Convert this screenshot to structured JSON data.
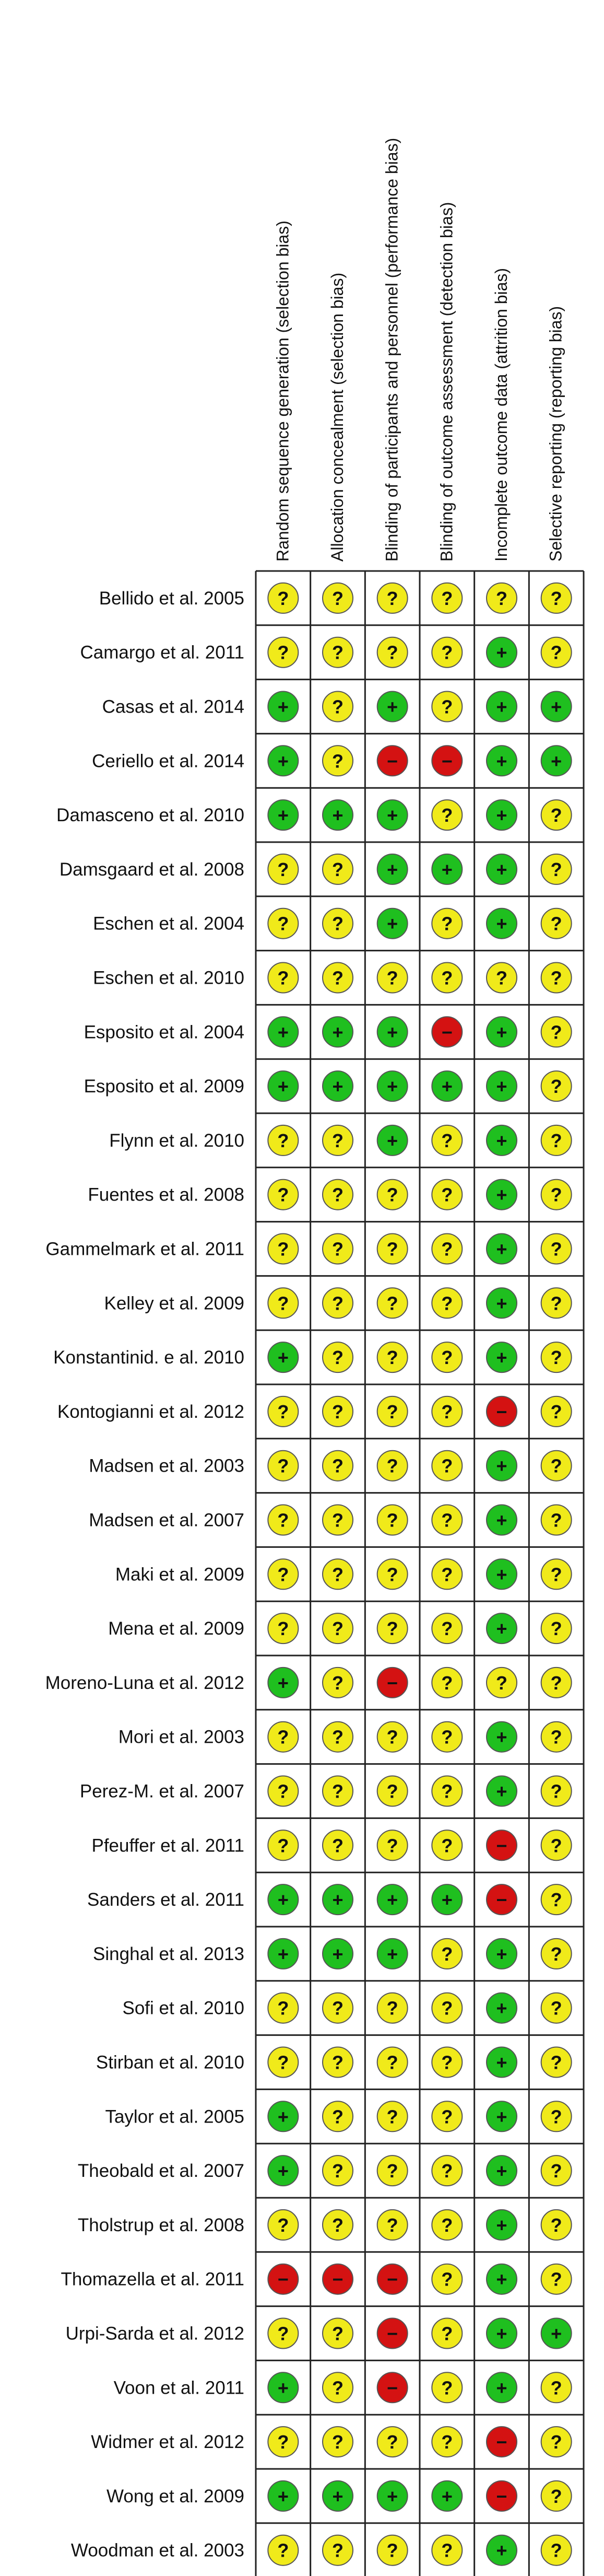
{
  "chart_data": {
    "type": "table",
    "domains": [
      "Random sequence generation (selection bias)",
      "Allocation concealment (selection bias)",
      "Blinding of participants and personnel (performance bias)",
      "Blinding of outcome assessment (detection bias)",
      "Incomplete outcome data (attrition bias)",
      "Selective reporting (reporting bias)"
    ],
    "judgement_symbols": {
      "low": "+",
      "unclear": "?",
      "high": "−"
    },
    "judgement_colors": {
      "low": "#1fbf1f",
      "unclear": "#f0ea1a",
      "high": "#d41212"
    },
    "studies": [
      {
        "name": "Bellido et al. 2005",
        "ratings": [
          "unclear",
          "unclear",
          "unclear",
          "unclear",
          "unclear",
          "unclear"
        ]
      },
      {
        "name": "Camargo et al. 2011",
        "ratings": [
          "unclear",
          "unclear",
          "unclear",
          "unclear",
          "low",
          "unclear"
        ]
      },
      {
        "name": "Casas et al. 2014",
        "ratings": [
          "low",
          "unclear",
          "low",
          "unclear",
          "low",
          "low"
        ]
      },
      {
        "name": "Ceriello et al. 2014",
        "ratings": [
          "low",
          "unclear",
          "high",
          "high",
          "low",
          "low"
        ]
      },
      {
        "name": "Damasceno et al. 2010",
        "ratings": [
          "low",
          "low",
          "low",
          "unclear",
          "low",
          "unclear"
        ]
      },
      {
        "name": "Damsgaard et al. 2008",
        "ratings": [
          "unclear",
          "unclear",
          "low",
          "low",
          "low",
          "unclear"
        ]
      },
      {
        "name": "Eschen et al. 2004",
        "ratings": [
          "unclear",
          "unclear",
          "low",
          "unclear",
          "low",
          "unclear"
        ]
      },
      {
        "name": "Eschen et al. 2010",
        "ratings": [
          "unclear",
          "unclear",
          "unclear",
          "unclear",
          "unclear",
          "unclear"
        ]
      },
      {
        "name": "Esposito et al. 2004",
        "ratings": [
          "low",
          "low",
          "low",
          "high",
          "low",
          "unclear"
        ]
      },
      {
        "name": "Esposito et al. 2009",
        "ratings": [
          "low",
          "low",
          "low",
          "low",
          "low",
          "unclear"
        ]
      },
      {
        "name": "Flynn et al. 2010",
        "ratings": [
          "unclear",
          "unclear",
          "low",
          "unclear",
          "low",
          "unclear"
        ]
      },
      {
        "name": "Fuentes et al. 2008",
        "ratings": [
          "unclear",
          "unclear",
          "unclear",
          "unclear",
          "low",
          "unclear"
        ]
      },
      {
        "name": "Gammelmark et al. 2011",
        "ratings": [
          "unclear",
          "unclear",
          "unclear",
          "unclear",
          "low",
          "unclear"
        ]
      },
      {
        "name": "Kelley et al. 2009",
        "ratings": [
          "unclear",
          "unclear",
          "unclear",
          "unclear",
          "low",
          "unclear"
        ]
      },
      {
        "name": "Konstantinid. e al. 2010",
        "ratings": [
          "low",
          "unclear",
          "unclear",
          "unclear",
          "low",
          "unclear"
        ]
      },
      {
        "name": "Kontogianni et al. 2012",
        "ratings": [
          "unclear",
          "unclear",
          "unclear",
          "unclear",
          "high",
          "unclear"
        ]
      },
      {
        "name": "Madsen et al. 2003",
        "ratings": [
          "unclear",
          "unclear",
          "unclear",
          "unclear",
          "low",
          "unclear"
        ]
      },
      {
        "name": "Madsen et al. 2007",
        "ratings": [
          "unclear",
          "unclear",
          "unclear",
          "unclear",
          "low",
          "unclear"
        ]
      },
      {
        "name": "Maki et al. 2009",
        "ratings": [
          "unclear",
          "unclear",
          "unclear",
          "unclear",
          "low",
          "unclear"
        ]
      },
      {
        "name": "Mena et al. 2009",
        "ratings": [
          "unclear",
          "unclear",
          "unclear",
          "unclear",
          "low",
          "unclear"
        ]
      },
      {
        "name": "Moreno-Luna et al. 2012",
        "ratings": [
          "low",
          "unclear",
          "high",
          "unclear",
          "unclear",
          "unclear"
        ]
      },
      {
        "name": "Mori et al. 2003",
        "ratings": [
          "unclear",
          "unclear",
          "unclear",
          "unclear",
          "low",
          "unclear"
        ]
      },
      {
        "name": "Perez-M. et al. 2007",
        "ratings": [
          "unclear",
          "unclear",
          "unclear",
          "unclear",
          "low",
          "unclear"
        ]
      },
      {
        "name": "Pfeuffer et al. 2011",
        "ratings": [
          "unclear",
          "unclear",
          "unclear",
          "unclear",
          "high",
          "unclear"
        ]
      },
      {
        "name": "Sanders et al. 2011",
        "ratings": [
          "low",
          "low",
          "low",
          "low",
          "high",
          "unclear"
        ]
      },
      {
        "name": "Singhal et al. 2013",
        "ratings": [
          "low",
          "low",
          "low",
          "unclear",
          "low",
          "unclear"
        ]
      },
      {
        "name": "Sofi et al. 2010",
        "ratings": [
          "unclear",
          "unclear",
          "unclear",
          "unclear",
          "low",
          "unclear"
        ]
      },
      {
        "name": "Stirban et al. 2010",
        "ratings": [
          "unclear",
          "unclear",
          "unclear",
          "unclear",
          "low",
          "unclear"
        ]
      },
      {
        "name": "Taylor et al. 2005",
        "ratings": [
          "low",
          "unclear",
          "unclear",
          "unclear",
          "low",
          "unclear"
        ]
      },
      {
        "name": "Theobald et al. 2007",
        "ratings": [
          "low",
          "unclear",
          "unclear",
          "unclear",
          "low",
          "unclear"
        ]
      },
      {
        "name": "Tholstrup et al. 2008",
        "ratings": [
          "unclear",
          "unclear",
          "unclear",
          "unclear",
          "low",
          "unclear"
        ]
      },
      {
        "name": "Thomazella et al. 2011",
        "ratings": [
          "high",
          "high",
          "high",
          "unclear",
          "low",
          "unclear"
        ]
      },
      {
        "name": "Urpi-Sarda et al. 2012",
        "ratings": [
          "unclear",
          "unclear",
          "high",
          "unclear",
          "low",
          "low"
        ]
      },
      {
        "name": "Voon et al. 2011",
        "ratings": [
          "low",
          "unclear",
          "high",
          "unclear",
          "low",
          "unclear"
        ]
      },
      {
        "name": "Widmer et al. 2012",
        "ratings": [
          "unclear",
          "unclear",
          "unclear",
          "unclear",
          "high",
          "unclear"
        ]
      },
      {
        "name": "Wong et al. 2009",
        "ratings": [
          "low",
          "low",
          "low",
          "low",
          "high",
          "unclear"
        ]
      },
      {
        "name": "Woodman et al. 2003",
        "ratings": [
          "unclear",
          "unclear",
          "unclear",
          "unclear",
          "low",
          "unclear"
        ]
      }
    ]
  }
}
